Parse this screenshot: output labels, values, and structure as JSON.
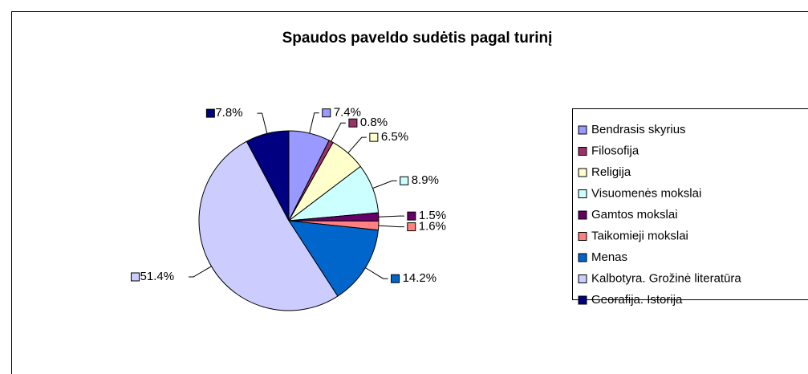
{
  "chart_data": {
    "type": "pie",
    "title": "Spaudos paveldo sudėtis pagal turinį",
    "categories": [
      "Bendrasis skyrius",
      "Filosofija",
      "Religija",
      "Visuomenės mokslai",
      "Gamtos mokslai",
      "Taikomieji mokslai",
      "Menas",
      "Kalbotyra. Grožinė literatūra",
      "Georafija. Istorija"
    ],
    "values": [
      7.4,
      0.8,
      6.5,
      8.9,
      1.5,
      1.6,
      14.2,
      51.4,
      7.8
    ],
    "value_labels": [
      "7.4%",
      "0.8%",
      "6.5%",
      "8.9%",
      "1.5%",
      "1.6%",
      "14.2%",
      "51.4%",
      "7.8%"
    ],
    "colors": [
      "#9999ff",
      "#993366",
      "#ffffcc",
      "#ccffff",
      "#660066",
      "#ff8080",
      "#0066cc",
      "#ccccff",
      "#000080"
    ],
    "legend": "right"
  }
}
